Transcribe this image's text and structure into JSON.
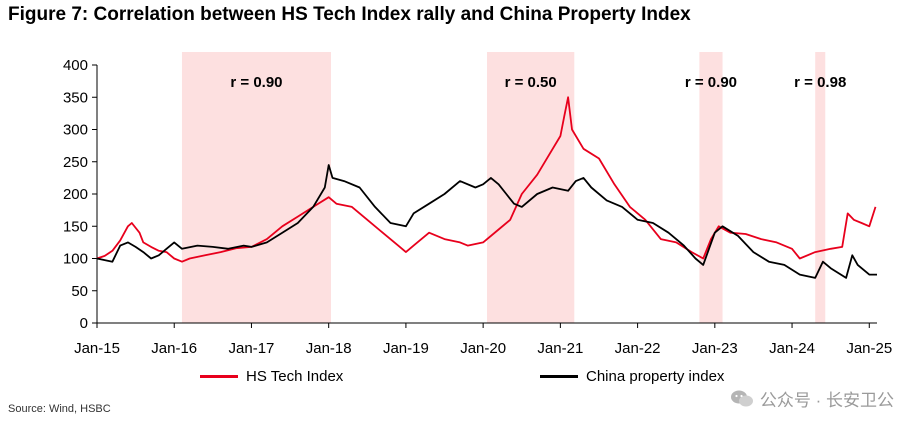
{
  "chart_data": {
    "type": "line",
    "title": "Figure 7: Correlation between HS Tech Index rally and China Property Index",
    "x_tick_labels": [
      "Jan-15",
      "Jan-16",
      "Jan-17",
      "Jan-18",
      "Jan-19",
      "Jan-20",
      "Jan-21",
      "Jan-22",
      "Jan-23",
      "Jan-24",
      "Jan-25"
    ],
    "y_tick_labels": [
      "0",
      "50",
      "100",
      "150",
      "200",
      "250",
      "300",
      "350",
      "400"
    ],
    "ylim": [
      0,
      400
    ],
    "xlim": [
      2015.0,
      2025.1
    ],
    "grid": false,
    "legend_position": "bottom",
    "shaded_periods": [
      {
        "start": 2016.1,
        "end": 2018.03,
        "label": "r = 0.90"
      },
      {
        "start": 2020.05,
        "end": 2021.18,
        "label": "r = 0.50"
      },
      {
        "start": 2022.8,
        "end": 2023.1,
        "label": "r = 0.90"
      },
      {
        "start": 2024.3,
        "end": 2024.43,
        "label": "r = 0.98"
      }
    ],
    "series": [
      {
        "name": "HS Tech Index",
        "color": "#e8001c",
        "points": [
          [
            2015.0,
            100
          ],
          [
            2015.1,
            104
          ],
          [
            2015.2,
            112
          ],
          [
            2015.3,
            128
          ],
          [
            2015.4,
            150
          ],
          [
            2015.45,
            155
          ],
          [
            2015.55,
            140
          ],
          [
            2015.6,
            125
          ],
          [
            2015.7,
            118
          ],
          [
            2015.8,
            112
          ],
          [
            2015.9,
            110
          ],
          [
            2016.0,
            100
          ],
          [
            2016.1,
            95
          ],
          [
            2016.2,
            100
          ],
          [
            2016.4,
            105
          ],
          [
            2016.6,
            110
          ],
          [
            2016.8,
            116
          ],
          [
            2017.0,
            118
          ],
          [
            2017.2,
            130
          ],
          [
            2017.4,
            150
          ],
          [
            2017.6,
            165
          ],
          [
            2017.8,
            180
          ],
          [
            2018.0,
            195
          ],
          [
            2018.1,
            185
          ],
          [
            2018.3,
            180
          ],
          [
            2018.5,
            160
          ],
          [
            2018.7,
            140
          ],
          [
            2018.9,
            120
          ],
          [
            2019.0,
            110
          ],
          [
            2019.1,
            120
          ],
          [
            2019.3,
            140
          ],
          [
            2019.5,
            130
          ],
          [
            2019.7,
            125
          ],
          [
            2019.8,
            120
          ],
          [
            2020.0,
            125
          ],
          [
            2020.2,
            145
          ],
          [
            2020.35,
            160
          ],
          [
            2020.5,
            200
          ],
          [
            2020.7,
            230
          ],
          [
            2020.85,
            260
          ],
          [
            2021.0,
            290
          ],
          [
            2021.05,
            320
          ],
          [
            2021.1,
            350
          ],
          [
            2021.15,
            300
          ],
          [
            2021.3,
            270
          ],
          [
            2021.5,
            255
          ],
          [
            2021.7,
            215
          ],
          [
            2021.9,
            180
          ],
          [
            2022.1,
            160
          ],
          [
            2022.3,
            130
          ],
          [
            2022.5,
            125
          ],
          [
            2022.7,
            110
          ],
          [
            2022.85,
            100
          ],
          [
            2022.95,
            130
          ],
          [
            2023.05,
            150
          ],
          [
            2023.2,
            140
          ],
          [
            2023.4,
            138
          ],
          [
            2023.6,
            130
          ],
          [
            2023.8,
            125
          ],
          [
            2024.0,
            115
          ],
          [
            2024.1,
            100
          ],
          [
            2024.3,
            110
          ],
          [
            2024.5,
            115
          ],
          [
            2024.65,
            118
          ],
          [
            2024.72,
            170
          ],
          [
            2024.8,
            160
          ],
          [
            2024.9,
            155
          ],
          [
            2025.0,
            150
          ],
          [
            2025.08,
            180
          ]
        ]
      },
      {
        "name": "China property index",
        "color": "#000000",
        "points": [
          [
            2015.0,
            100
          ],
          [
            2015.2,
            95
          ],
          [
            2015.3,
            120
          ],
          [
            2015.4,
            125
          ],
          [
            2015.5,
            118
          ],
          [
            2015.6,
            110
          ],
          [
            2015.7,
            100
          ],
          [
            2015.8,
            105
          ],
          [
            2015.9,
            115
          ],
          [
            2016.0,
            125
          ],
          [
            2016.1,
            115
          ],
          [
            2016.3,
            120
          ],
          [
            2016.5,
            118
          ],
          [
            2016.7,
            115
          ],
          [
            2016.9,
            120
          ],
          [
            2017.0,
            118
          ],
          [
            2017.2,
            125
          ],
          [
            2017.4,
            140
          ],
          [
            2017.6,
            155
          ],
          [
            2017.8,
            180
          ],
          [
            2017.95,
            210
          ],
          [
            2018.0,
            245
          ],
          [
            2018.05,
            225
          ],
          [
            2018.2,
            220
          ],
          [
            2018.4,
            210
          ],
          [
            2018.6,
            180
          ],
          [
            2018.8,
            155
          ],
          [
            2019.0,
            150
          ],
          [
            2019.1,
            170
          ],
          [
            2019.3,
            185
          ],
          [
            2019.5,
            200
          ],
          [
            2019.7,
            220
          ],
          [
            2019.9,
            210
          ],
          [
            2020.0,
            215
          ],
          [
            2020.1,
            225
          ],
          [
            2020.2,
            215
          ],
          [
            2020.3,
            200
          ],
          [
            2020.4,
            185
          ],
          [
            2020.5,
            180
          ],
          [
            2020.7,
            200
          ],
          [
            2020.9,
            210
          ],
          [
            2021.1,
            205
          ],
          [
            2021.2,
            220
          ],
          [
            2021.3,
            225
          ],
          [
            2021.4,
            210
          ],
          [
            2021.6,
            190
          ],
          [
            2021.8,
            180
          ],
          [
            2022.0,
            160
          ],
          [
            2022.2,
            155
          ],
          [
            2022.4,
            140
          ],
          [
            2022.6,
            120
          ],
          [
            2022.75,
            100
          ],
          [
            2022.85,
            90
          ],
          [
            2023.0,
            140
          ],
          [
            2023.1,
            150
          ],
          [
            2023.3,
            135
          ],
          [
            2023.5,
            110
          ],
          [
            2023.7,
            95
          ],
          [
            2023.9,
            90
          ],
          [
            2024.1,
            75
          ],
          [
            2024.3,
            70
          ],
          [
            2024.4,
            95
          ],
          [
            2024.5,
            85
          ],
          [
            2024.7,
            70
          ],
          [
            2024.78,
            105
          ],
          [
            2024.85,
            90
          ],
          [
            2025.0,
            75
          ],
          [
            2025.1,
            75
          ]
        ]
      }
    ]
  },
  "legend": {
    "items": [
      {
        "label": "HS Tech Index",
        "color": "#e8001c"
      },
      {
        "label": "China property index",
        "color": "#000000"
      }
    ]
  },
  "source": {
    "text": "Source: Wind, HSBC"
  },
  "watermark": {
    "text": "公众号 · 长安卫公"
  }
}
